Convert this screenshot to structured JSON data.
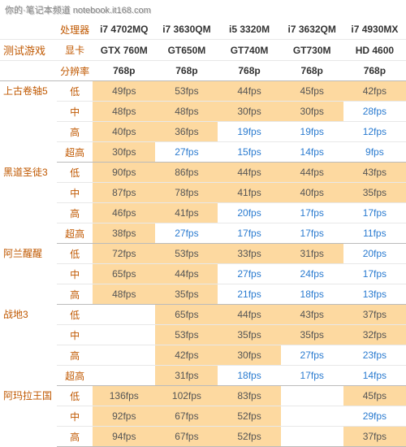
{
  "watermark": "你的·笔记本频道 notebook.it168.com",
  "colors": {
    "highlight_bg": "#fdd9a0",
    "orange_text": "#c05800",
    "blue_text": "#2a7bd0",
    "grid": "#e8e8e8",
    "bg": "#ffffff"
  },
  "header": {
    "title": "测试游戏",
    "row_labels": [
      "处理器",
      "显卡",
      "分辨率"
    ],
    "cpus": [
      "i7 4702MQ",
      "i7 3630QM",
      "i5 3320M",
      "i7 3632QM",
      "i7 4930MX"
    ],
    "gpus": [
      "GTX 760M",
      "GT650M",
      "GT740M",
      "GT730M",
      "HD 4600"
    ],
    "res": [
      "768p",
      "768p",
      "768p",
      "768p",
      "768p"
    ]
  },
  "setting_labels": [
    "低",
    "中",
    "高",
    "超高"
  ],
  "games": [
    {
      "name": "上古卷轴5",
      "rows": [
        {
          "vals": [
            "49fps",
            "53fps",
            "44fps",
            "45fps",
            "42fps"
          ],
          "hl": [
            1,
            1,
            1,
            1,
            1
          ],
          "blue": [
            0,
            0,
            0,
            0,
            0
          ]
        },
        {
          "vals": [
            "48fps",
            "48fps",
            "30fps",
            "30fps",
            "28fps"
          ],
          "hl": [
            1,
            1,
            1,
            1,
            0
          ],
          "blue": [
            0,
            0,
            0,
            0,
            1
          ]
        },
        {
          "vals": [
            "40fps",
            "36fps",
            "19fps",
            "19fps",
            "12fps"
          ],
          "hl": [
            1,
            1,
            0,
            0,
            0
          ],
          "blue": [
            0,
            0,
            1,
            1,
            1
          ]
        },
        {
          "vals": [
            "30fps",
            "27fps",
            "15fps",
            "14fps",
            "9fps"
          ],
          "hl": [
            1,
            0,
            0,
            0,
            0
          ],
          "blue": [
            0,
            1,
            1,
            1,
            1
          ]
        }
      ]
    },
    {
      "name": "黑道圣徒3",
      "rows": [
        {
          "vals": [
            "90fps",
            "86fps",
            "44fps",
            "44fps",
            "43fps"
          ],
          "hl": [
            1,
            1,
            1,
            1,
            1
          ],
          "blue": [
            0,
            0,
            0,
            0,
            0
          ]
        },
        {
          "vals": [
            "87fps",
            "78fps",
            "41fps",
            "40fps",
            "35fps"
          ],
          "hl": [
            1,
            1,
            1,
            1,
            1
          ],
          "blue": [
            0,
            0,
            0,
            0,
            0
          ]
        },
        {
          "vals": [
            "46fps",
            "41fps",
            "20fps",
            "17fps",
            "17fps"
          ],
          "hl": [
            1,
            1,
            0,
            0,
            0
          ],
          "blue": [
            0,
            0,
            1,
            1,
            1
          ]
        },
        {
          "vals": [
            "38fps",
            "27fps",
            "17fps",
            "17fps",
            "11fps"
          ],
          "hl": [
            1,
            0,
            0,
            0,
            0
          ],
          "blue": [
            0,
            1,
            1,
            1,
            1
          ]
        }
      ]
    },
    {
      "name": "阿兰醒醒",
      "rows": [
        {
          "vals": [
            "72fps",
            "53fps",
            "33fps",
            "31fps",
            "20fps"
          ],
          "hl": [
            1,
            1,
            1,
            1,
            0
          ],
          "blue": [
            0,
            0,
            0,
            0,
            1
          ]
        },
        {
          "vals": [
            "65fps",
            "44fps",
            "27fps",
            "24fps",
            "17fps"
          ],
          "hl": [
            1,
            1,
            0,
            0,
            0
          ],
          "blue": [
            0,
            0,
            1,
            1,
            1
          ]
        },
        {
          "vals": [
            "48fps",
            "35fps",
            "21fps",
            "18fps",
            "13fps"
          ],
          "hl": [
            1,
            1,
            0,
            0,
            0
          ],
          "blue": [
            0,
            0,
            1,
            1,
            1
          ]
        }
      ]
    },
    {
      "name": "战地3",
      "rows": [
        {
          "vals": [
            "",
            "65fps",
            "44fps",
            "43fps",
            "37fps"
          ],
          "hl": [
            0,
            1,
            1,
            1,
            1
          ],
          "blue": [
            0,
            0,
            0,
            0,
            0
          ]
        },
        {
          "vals": [
            "",
            "53fps",
            "35fps",
            "35fps",
            "32fps"
          ],
          "hl": [
            0,
            1,
            1,
            1,
            1
          ],
          "blue": [
            0,
            0,
            0,
            0,
            0
          ]
        },
        {
          "vals": [
            "",
            "42fps",
            "30fps",
            "27fps",
            "23fps"
          ],
          "hl": [
            0,
            1,
            1,
            0,
            0
          ],
          "blue": [
            0,
            0,
            0,
            1,
            1
          ]
        },
        {
          "vals": [
            "",
            "31fps",
            "18fps",
            "17fps",
            "14fps"
          ],
          "hl": [
            0,
            1,
            0,
            0,
            0
          ],
          "blue": [
            0,
            0,
            1,
            1,
            1
          ]
        }
      ]
    },
    {
      "name": "阿玛拉王国",
      "rows": [
        {
          "vals": [
            "136fps",
            "102fps",
            "83fps",
            "",
            "45fps"
          ],
          "hl": [
            1,
            1,
            1,
            0,
            1
          ],
          "blue": [
            0,
            0,
            0,
            0,
            0
          ]
        },
        {
          "vals": [
            "92fps",
            "67fps",
            "52fps",
            "",
            "29fps"
          ],
          "hl": [
            1,
            1,
            1,
            0,
            0
          ],
          "blue": [
            0,
            0,
            0,
            0,
            1
          ]
        },
        {
          "vals": [
            "94fps",
            "67fps",
            "52fps",
            "",
            "37fps"
          ],
          "hl": [
            1,
            1,
            1,
            0,
            1
          ],
          "blue": [
            0,
            0,
            0,
            0,
            0
          ]
        }
      ]
    }
  ]
}
